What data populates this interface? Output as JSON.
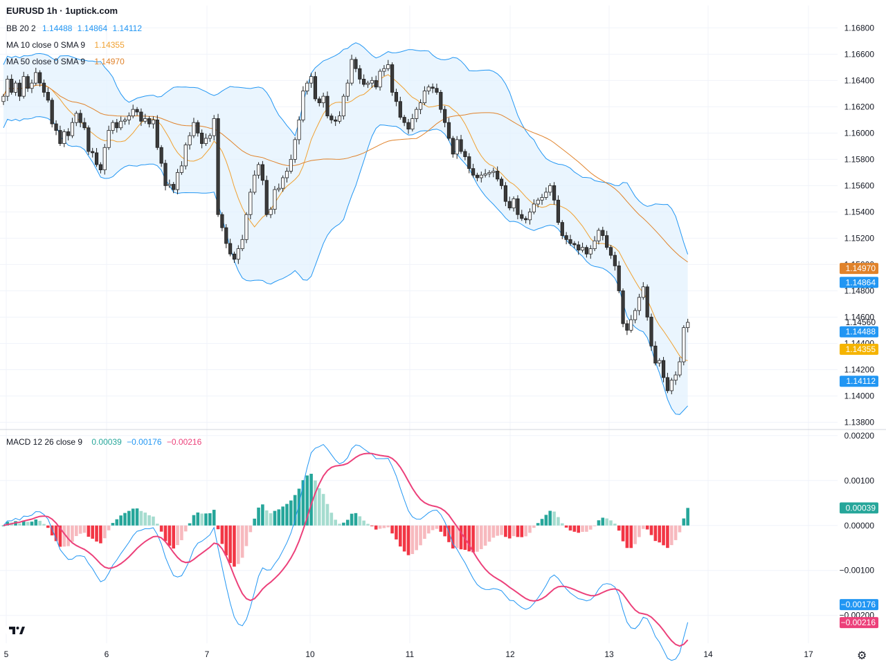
{
  "header": {
    "title": "EURUSD 1h · 1uptick.com"
  },
  "legend": {
    "bb": {
      "label": "BB 20 2",
      "values": [
        "1.14488",
        "1.14864",
        "1.14112"
      ]
    },
    "ma10": {
      "label": "MA 10 close 0 SMA 9",
      "value": "1.14355"
    },
    "ma50": {
      "label": "MA 50 close 0 SMA 9",
      "value": "1.14970"
    },
    "macd": {
      "label": "MACD 12 26 close 9",
      "values": [
        "0.00039",
        "−0.00176",
        "−0.00216"
      ]
    }
  },
  "colors": {
    "bb_line": "#2196f3",
    "bb_fill": "#e3f2fd",
    "ma10": "#f0a030",
    "ma50": "#e0822a",
    "macd_line": "#2196f3",
    "signal_line": "#ec407a",
    "hist_pos_strong": "#26a69a",
    "hist_pos_weak": "#a5dccf",
    "hist_neg_strong": "#f23645",
    "hist_neg_weak": "#f7b9be",
    "candle": "#1e1e1e",
    "grid": "#f0f3fa"
  },
  "icons": {
    "logo": "tradingview-logo-icon",
    "settings": "gear-icon"
  },
  "chart_data": [
    {
      "type": "candlestick",
      "symbol": "EURUSD",
      "timeframe": "1h",
      "x_ticks": [
        "5",
        "6",
        "7",
        "10",
        "11",
        "12",
        "13",
        "14",
        "17"
      ],
      "y_ticks": [
        "1.13800",
        "1.14000",
        "1.14200",
        "1.14400",
        "1.14600",
        "1.14800",
        "1.15000",
        "1.15200",
        "1.15400",
        "1.15600",
        "1.15800",
        "1.16000",
        "1.16200",
        "1.16400",
        "1.16600",
        "1.16800"
      ],
      "ylim": [
        1.1375,
        1.1697
      ],
      "price_labels": [
        {
          "text": "1.14970",
          "value": 1.1497,
          "color": "#e0822a"
        },
        {
          "text": "1.14864",
          "value": 1.14864,
          "color": "#2196f3"
        },
        {
          "text": "1.14560",
          "value": 1.1456,
          "color": "none"
        },
        {
          "text": "1.14488",
          "value": 1.14488,
          "color": "#2196f3"
        },
        {
          "text": "1.14355",
          "value": 1.14355,
          "color": "#f5b400"
        },
        {
          "text": "1.14112",
          "value": 1.14112,
          "color": "#2196f3"
        }
      ],
      "closes": [
        1.1628,
        1.1641,
        1.1631,
        1.1638,
        1.1628,
        1.1643,
        1.1634,
        1.1638,
        1.1646,
        1.1638,
        1.1631,
        1.1625,
        1.1607,
        1.1602,
        1.1592,
        1.1601,
        1.1598,
        1.1608,
        1.1615,
        1.1608,
        1.1604,
        1.1586,
        1.1585,
        1.1576,
        1.1572,
        1.1589,
        1.1602,
        1.1608,
        1.1604,
        1.1609,
        1.161,
        1.1613,
        1.1618,
        1.1616,
        1.1609,
        1.1611,
        1.1607,
        1.161,
        1.1589,
        1.1577,
        1.156,
        1.1561,
        1.1557,
        1.157,
        1.1575,
        1.1591,
        1.1598,
        1.1608,
        1.16,
        1.1592,
        1.1596,
        1.1598,
        1.1611,
        1.1538,
        1.1528,
        1.1516,
        1.1508,
        1.1504,
        1.1512,
        1.1519,
        1.1538,
        1.1555,
        1.1568,
        1.1576,
        1.1564,
        1.1538,
        1.1542,
        1.1557,
        1.1558,
        1.1566,
        1.1571,
        1.158,
        1.1595,
        1.161,
        1.1632,
        1.1638,
        1.1643,
        1.1626,
        1.1623,
        1.1628,
        1.1613,
        1.161,
        1.1609,
        1.1613,
        1.1628,
        1.1638,
        1.1656,
        1.1649,
        1.1641,
        1.1637,
        1.1638,
        1.164,
        1.1635,
        1.1647,
        1.1649,
        1.1652,
        1.1631,
        1.1624,
        1.1612,
        1.1608,
        1.1603,
        1.1611,
        1.1618,
        1.1623,
        1.1632,
        1.1635,
        1.1634,
        1.1631,
        1.1618,
        1.1608,
        1.1596,
        1.1584,
        1.1595,
        1.1586,
        1.1582,
        1.1573,
        1.1568,
        1.1566,
        1.1568,
        1.1569,
        1.157,
        1.1571,
        1.1565,
        1.156,
        1.1548,
        1.1543,
        1.155,
        1.1538,
        1.1535,
        1.1534,
        1.154,
        1.1546,
        1.1549,
        1.1551,
        1.1555,
        1.156,
        1.1549,
        1.1532,
        1.1522,
        1.1519,
        1.1516,
        1.1515,
        1.1511,
        1.1513,
        1.1508,
        1.1512,
        1.1518,
        1.1526,
        1.1522,
        1.1513,
        1.1507,
        1.1499,
        1.148,
        1.1455,
        1.145,
        1.1458,
        1.1465,
        1.1475,
        1.1483,
        1.146,
        1.1438,
        1.1425,
        1.1427,
        1.1414,
        1.1404,
        1.1412,
        1.1416,
        1.1426,
        1.1452,
        1.1456
      ],
      "bb_upper_end": 1.14864,
      "bb_middle_end": 1.14488,
      "bb_lower_end": 1.14112,
      "ma10_end": 1.14355,
      "ma50_end": 1.1497
    },
    {
      "type": "bar",
      "name": "MACD 12 26 close 9",
      "y_ticks": [
        "0.00200",
        "0.00100",
        "0.00000",
        "−0.00100",
        "−0.00200"
      ],
      "ylim": [
        -0.00262,
        0.00212
      ],
      "value_labels": [
        {
          "text": "0.00039",
          "value": 0.00039,
          "color": "#26a69a"
        },
        {
          "text": "−0.00176",
          "value": -0.00176,
          "color": "#2196f3"
        },
        {
          "text": "−0.00216",
          "value": -0.00216,
          "color": "#ec407a"
        }
      ],
      "macd_end": -0.00176,
      "signal_end": -0.00216,
      "histogram_end": 0.00039
    }
  ]
}
